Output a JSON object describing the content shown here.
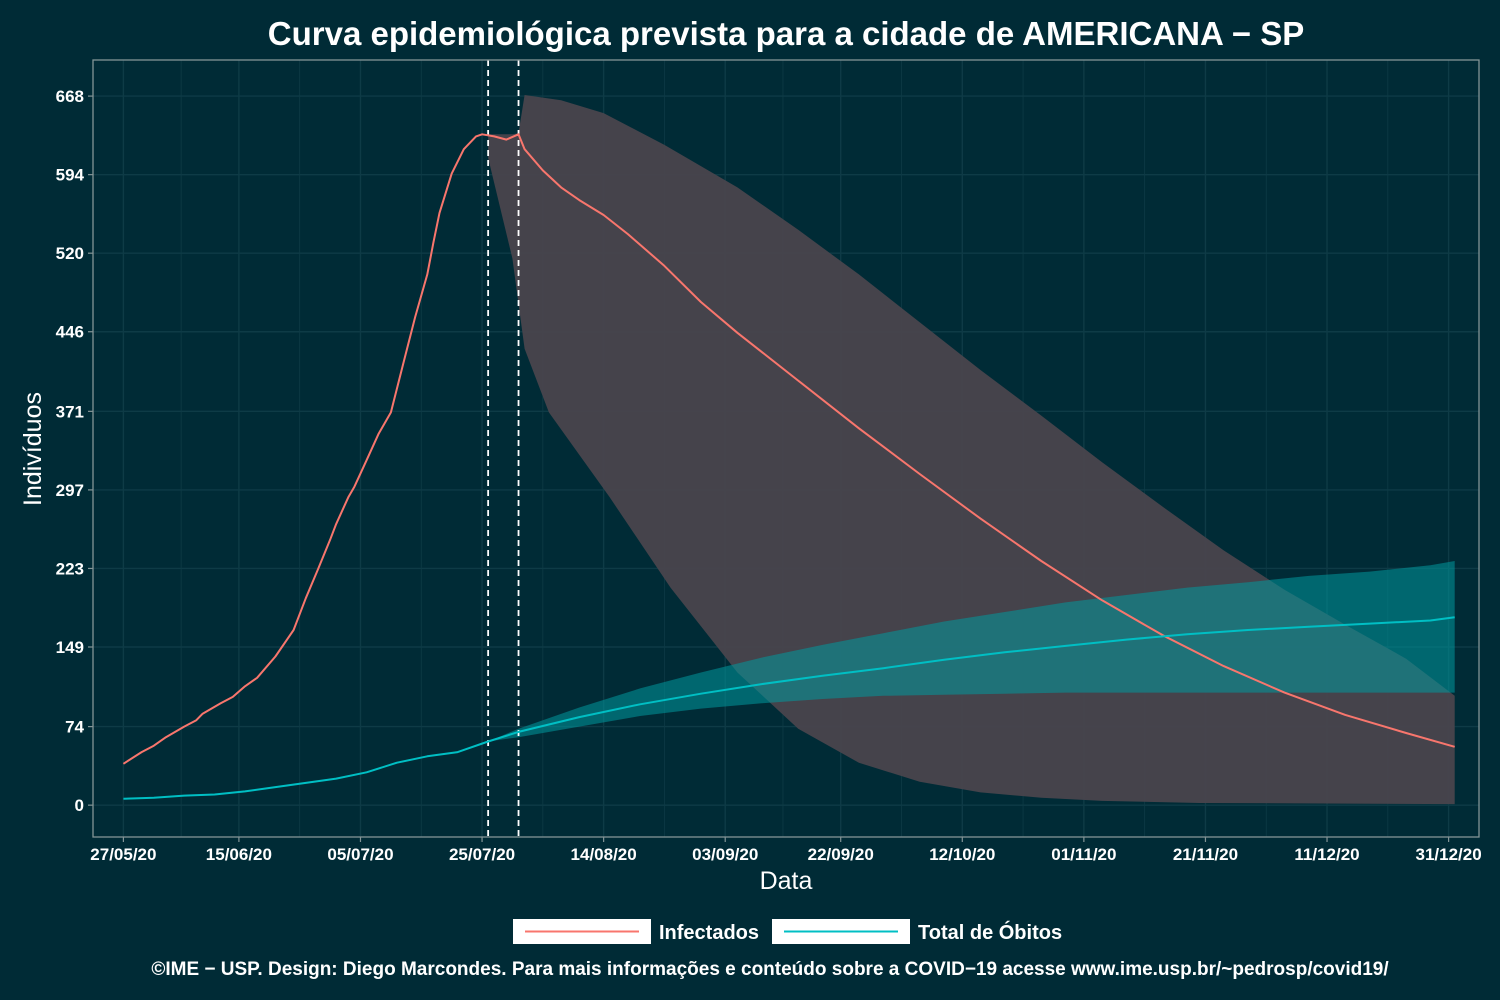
{
  "chart_data": {
    "type": "line",
    "title": "Curva epidemiológica prevista para a cidade de AMERICANA − SP",
    "xlabel": "Data",
    "ylabel": "Indivíduos",
    "x_range": [
      "2020-05-22",
      "2021-01-05"
    ],
    "ylim": [
      -30,
      702
    ],
    "y_ticks": [
      0,
      74,
      149,
      223,
      297,
      371,
      446,
      520,
      594,
      668
    ],
    "x_ticks": [
      {
        "date": "2020-05-27",
        "label": "27/05/20"
      },
      {
        "date": "2020-06-15",
        "label": "15/06/20"
      },
      {
        "date": "2020-07-05",
        "label": "05/07/20"
      },
      {
        "date": "2020-07-25",
        "label": "25/07/20"
      },
      {
        "date": "2020-08-14",
        "label": "14/08/20"
      },
      {
        "date": "2020-09-03",
        "label": "03/09/20"
      },
      {
        "date": "2020-09-22",
        "label": "22/09/20"
      },
      {
        "date": "2020-10-12",
        "label": "12/10/20"
      },
      {
        "date": "2020-11-01",
        "label": "01/11/20"
      },
      {
        "date": "2020-11-21",
        "label": "21/11/20"
      },
      {
        "date": "2020-12-11",
        "label": "11/12/20"
      },
      {
        "date": "2020-12-31",
        "label": "31/12/20"
      }
    ],
    "vlines": [
      "2020-07-26",
      "2020-07-31"
    ],
    "grid": true,
    "legend_position": "bottom",
    "colors": {
      "background": "#002b36",
      "panel_border": "#839496",
      "grid": "#0e3b46",
      "infected": "#f8766d",
      "deaths": "#00bfc4",
      "infected_band": "#49454d",
      "deaths_band": "#00999f"
    },
    "series": [
      {
        "name": "Infectados",
        "color": "#f8766d",
        "points": [
          [
            "2020-05-27",
            39
          ],
          [
            "2020-05-30",
            50
          ],
          [
            "2020-06-01",
            56
          ],
          [
            "2020-06-03",
            64
          ],
          [
            "2020-06-06",
            74
          ],
          [
            "2020-06-08",
            80
          ],
          [
            "2020-06-09",
            86
          ],
          [
            "2020-06-12",
            96
          ],
          [
            "2020-06-14",
            102
          ],
          [
            "2020-06-16",
            112
          ],
          [
            "2020-06-18",
            120
          ],
          [
            "2020-06-21",
            140
          ],
          [
            "2020-06-24",
            165
          ],
          [
            "2020-06-26",
            195
          ],
          [
            "2020-06-28",
            222
          ],
          [
            "2020-06-30",
            250
          ],
          [
            "2020-07-01",
            265
          ],
          [
            "2020-07-03",
            290
          ],
          [
            "2020-07-04",
            300
          ],
          [
            "2020-07-06",
            325
          ],
          [
            "2020-07-08",
            350
          ],
          [
            "2020-07-10",
            370
          ],
          [
            "2020-07-12",
            415
          ],
          [
            "2020-07-14",
            460
          ],
          [
            "2020-07-16",
            500
          ],
          [
            "2020-07-17",
            530
          ],
          [
            "2020-07-18",
            558
          ],
          [
            "2020-07-20",
            595
          ],
          [
            "2020-07-22",
            618
          ],
          [
            "2020-07-24",
            630
          ],
          [
            "2020-07-25",
            632
          ],
          [
            "2020-07-27",
            630
          ],
          [
            "2020-07-29",
            627
          ],
          [
            "2020-07-31",
            632
          ],
          [
            "2020-08-01",
            618
          ],
          [
            "2020-08-04",
            598
          ],
          [
            "2020-08-07",
            582
          ],
          [
            "2020-08-10",
            570
          ],
          [
            "2020-08-14",
            556
          ],
          [
            "2020-08-18",
            538
          ],
          [
            "2020-08-24",
            508
          ],
          [
            "2020-08-30",
            474
          ],
          [
            "2020-09-05",
            445
          ],
          [
            "2020-09-15",
            400
          ],
          [
            "2020-09-25",
            355
          ],
          [
            "2020-10-05",
            312
          ],
          [
            "2020-10-15",
            270
          ],
          [
            "2020-10-25",
            230
          ],
          [
            "2020-11-04",
            193
          ],
          [
            "2020-11-14",
            160
          ],
          [
            "2020-11-24",
            131
          ],
          [
            "2020-12-04",
            106
          ],
          [
            "2020-12-14",
            85
          ],
          [
            "2020-12-24",
            68
          ],
          [
            "2021-01-01",
            55
          ]
        ],
        "band_upper": [
          [
            "2020-07-26",
            632
          ],
          [
            "2020-07-30",
            632
          ],
          [
            "2020-07-31",
            633
          ],
          [
            "2020-08-01",
            669
          ],
          [
            "2020-08-07",
            664
          ],
          [
            "2020-08-14",
            652
          ],
          [
            "2020-08-24",
            622
          ],
          [
            "2020-09-05",
            582
          ],
          [
            "2020-09-15",
            542
          ],
          [
            "2020-09-25",
            500
          ],
          [
            "2020-10-05",
            455
          ],
          [
            "2020-10-15",
            410
          ],
          [
            "2020-10-25",
            367
          ],
          [
            "2020-11-04",
            323
          ],
          [
            "2020-11-14",
            281
          ],
          [
            "2020-11-24",
            240
          ],
          [
            "2020-12-04",
            203
          ],
          [
            "2020-12-14",
            170
          ],
          [
            "2020-12-24",
            138
          ],
          [
            "2021-01-01",
            103
          ]
        ],
        "band_lower": [
          [
            "2020-07-26",
            610
          ],
          [
            "2020-07-30",
            515
          ],
          [
            "2020-08-01",
            430
          ],
          [
            "2020-08-05",
            370
          ],
          [
            "2020-08-15",
            290
          ],
          [
            "2020-08-25",
            205
          ],
          [
            "2020-09-05",
            125
          ],
          [
            "2020-09-15",
            72
          ],
          [
            "2020-09-25",
            40
          ],
          [
            "2020-10-05",
            22
          ],
          [
            "2020-10-15",
            12
          ],
          [
            "2020-10-25",
            7
          ],
          [
            "2020-11-04",
            4
          ],
          [
            "2020-11-20",
            2
          ],
          [
            "2021-01-01",
            1
          ]
        ]
      },
      {
        "name": "Total de Óbitos",
        "color": "#00bfc4",
        "points": [
          [
            "2020-05-27",
            6
          ],
          [
            "2020-06-01",
            7
          ],
          [
            "2020-06-06",
            9
          ],
          [
            "2020-06-11",
            10
          ],
          [
            "2020-06-16",
            13
          ],
          [
            "2020-06-21",
            17
          ],
          [
            "2020-06-26",
            21
          ],
          [
            "2020-07-01",
            25
          ],
          [
            "2020-07-06",
            31
          ],
          [
            "2020-07-11",
            40
          ],
          [
            "2020-07-16",
            46
          ],
          [
            "2020-07-21",
            50
          ],
          [
            "2020-07-26",
            60
          ],
          [
            "2020-07-31",
            69
          ],
          [
            "2020-08-10",
            83
          ],
          [
            "2020-08-20",
            95
          ],
          [
            "2020-08-30",
            105
          ],
          [
            "2020-09-09",
            114
          ],
          [
            "2020-09-19",
            122
          ],
          [
            "2020-09-29",
            129
          ],
          [
            "2020-10-09",
            137
          ],
          [
            "2020-10-19",
            144
          ],
          [
            "2020-10-29",
            150
          ],
          [
            "2020-11-08",
            156
          ],
          [
            "2020-11-18",
            161
          ],
          [
            "2020-11-28",
            165
          ],
          [
            "2020-12-08",
            168
          ],
          [
            "2020-12-18",
            171
          ],
          [
            "2020-12-28",
            174
          ],
          [
            "2021-01-01",
            177
          ]
        ],
        "band_upper": [
          [
            "2020-07-26",
            60
          ],
          [
            "2020-07-31",
            72
          ],
          [
            "2020-08-10",
            92
          ],
          [
            "2020-08-20",
            110
          ],
          [
            "2020-08-30",
            125
          ],
          [
            "2020-09-09",
            139
          ],
          [
            "2020-09-19",
            151
          ],
          [
            "2020-09-29",
            162
          ],
          [
            "2020-10-09",
            173
          ],
          [
            "2020-10-19",
            182
          ],
          [
            "2020-10-29",
            191
          ],
          [
            "2020-11-08",
            198
          ],
          [
            "2020-11-18",
            205
          ],
          [
            "2020-11-28",
            210
          ],
          [
            "2020-12-08",
            216
          ],
          [
            "2020-12-18",
            220
          ],
          [
            "2020-12-28",
            226
          ],
          [
            "2021-01-01",
            230
          ]
        ],
        "band_lower": [
          [
            "2020-07-26",
            60
          ],
          [
            "2020-07-31",
            64
          ],
          [
            "2020-08-10",
            74
          ],
          [
            "2020-08-20",
            84
          ],
          [
            "2020-08-30",
            91
          ],
          [
            "2020-09-09",
            96
          ],
          [
            "2020-09-19",
            100
          ],
          [
            "2020-09-29",
            103
          ],
          [
            "2020-10-09",
            104
          ],
          [
            "2020-10-19",
            105
          ],
          [
            "2020-10-29",
            106
          ],
          [
            "2021-01-01",
            106
          ]
        ]
      }
    ],
    "legend": [
      {
        "label": "Infectados",
        "color": "#f8766d"
      },
      {
        "label": "Total de Óbitos",
        "color": "#00bfc4"
      }
    ],
    "footer": "©IME − USP. Design: Diego Marcondes. Para mais informações e conteúdo sobre a COVID−19 acesse www.ime.usp.br/~pedrosp/covid19/"
  }
}
